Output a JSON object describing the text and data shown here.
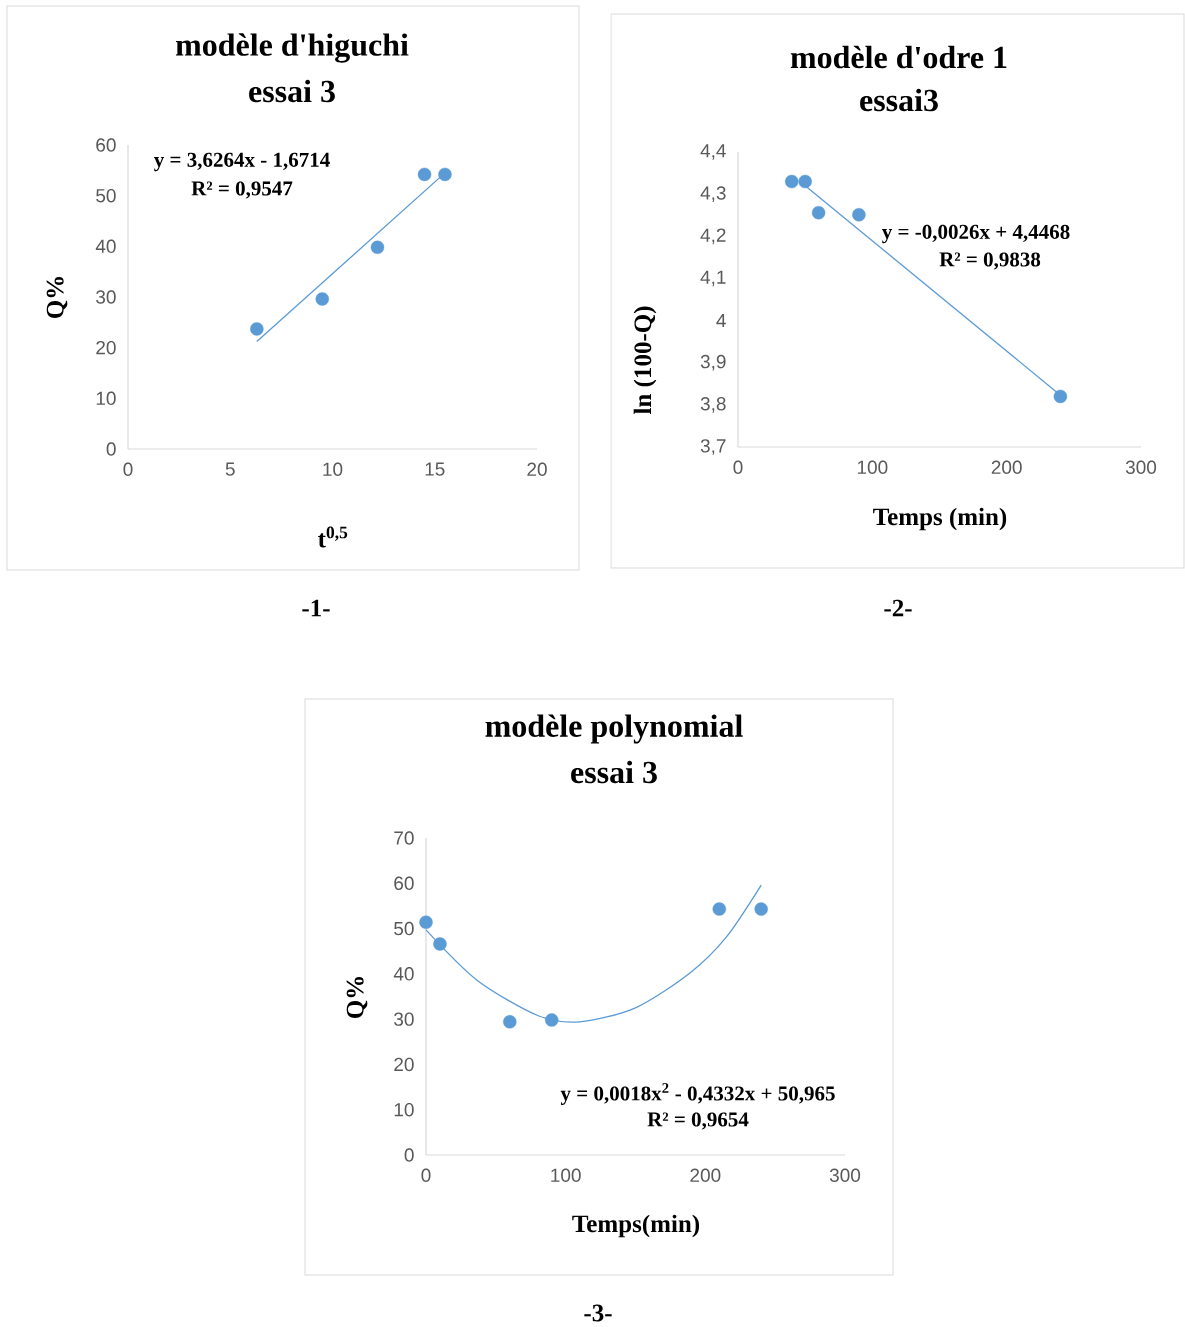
{
  "chart_data": [
    {
      "type": "scatter",
      "title": "modèle d'higuchi",
      "subtitle": "essai 3",
      "xlabel": "t$^{0,5}$",
      "ylabel": "Q%",
      "xlim": [
        0,
        20
      ],
      "ylim": [
        0,
        60
      ],
      "xticks": [
        0,
        5,
        10,
        15,
        20
      ],
      "yticks": [
        0,
        10,
        20,
        30,
        40,
        50,
        60
      ],
      "series": [
        {
          "type": "line",
          "marker": "none",
          "color": "#5b9bd5",
          "x": [
            6.3,
            15.5
          ],
          "values": [
            21.2,
            54.5
          ]
        },
        {
          "marker": "circle",
          "color": "#5b9bd5",
          "x": [
            6.3,
            9.5,
            12.2,
            14.5,
            15.5
          ],
          "values": [
            23.7,
            29.6,
            39.8,
            54.2,
            54.2
          ]
        }
      ],
      "annotations": [
        "y = 3,6264x - 1,6714",
        "R² = 0,9547",
        "-1-"
      ]
    },
    {
      "type": "scatter",
      "title": "modèle d'odre 1",
      "subtitle": "essai3",
      "xlabel": "Temps (min)",
      "ylabel": "ln (100-Q)",
      "xlim": [
        0,
        300
      ],
      "ylim": [
        3.7,
        4.4
      ],
      "xticks": [
        0,
        100,
        200,
        300
      ],
      "yticks": [
        {
          "value": 3.7,
          "label": "3,7"
        },
        {
          "value": 3.8,
          "label": "3,8"
        },
        {
          "value": 3.9,
          "label": "3,9"
        },
        {
          "value": 4,
          "label": "4"
        },
        {
          "value": 4.1,
          "label": "4,1"
        },
        {
          "value": 4.2,
          "label": "4,2"
        },
        {
          "value": 4.3,
          "label": "4,3"
        },
        {
          "value": 4.4,
          "label": "4,4"
        }
      ],
      "series": [
        {
          "type": "line",
          "marker": "none",
          "color": "#5b9bd5",
          "x": [
            50,
            240
          ],
          "values": [
            4.32,
            3.823
          ]
        },
        {
          "marker": "circle",
          "color": "#5b9bd5",
          "x": [
            40,
            50,
            60,
            90,
            240
          ],
          "values": [
            4.33,
            4.33,
            4.256,
            4.251,
            3.82
          ]
        }
      ],
      "annotations": [
        "y = -0,0026x + 4,4468",
        "R² = 0,9838",
        "-2-"
      ]
    },
    {
      "type": "scatter",
      "title": "modèle polynomial",
      "subtitle": "essai 3",
      "xlabel": "Temps(min)",
      "ylabel": "Q%",
      "xlim": [
        0,
        300
      ],
      "ylim": [
        0,
        70
      ],
      "xticks": [
        0,
        100,
        200,
        300
      ],
      "yticks": [
        0,
        10,
        20,
        30,
        40,
        50,
        60,
        70
      ],
      "series": [
        {
          "type": "line",
          "marker": "none",
          "color": "#5b9bd5",
          "x": [
            0,
            36.5,
            80,
            110,
            150,
            189,
            215,
            240
          ],
          "values": [
            49.7,
            38.6,
            30.8,
            29.4,
            32.5,
            40.2,
            48.1,
            59.6
          ]
        },
        {
          "marker": "circle",
          "color": "#5b9bd5",
          "x": [
            0,
            10,
            60,
            90,
            210,
            240
          ],
          "values": [
            51.4,
            46.6,
            29.4,
            29.8,
            54.3,
            54.3
          ]
        }
      ],
      "annotations": [
        "y = 0,0018x$^{2}$ - 0,4332x + 50,965",
        "R² = 0,9654",
        "-3-"
      ]
    }
  ]
}
